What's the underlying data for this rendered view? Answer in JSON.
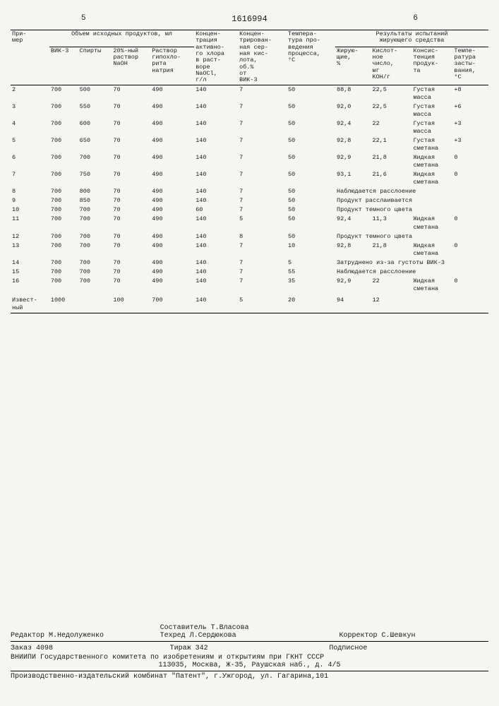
{
  "page_left": "5",
  "page_right": "6",
  "doc_number": "1616994",
  "headers": {
    "col1": "При-\nмер",
    "group1": "Объем исходных продуктов, мл",
    "g1c1": "ВИК-3",
    "g1c2": "Спирты",
    "g1c3": "20%-ный\nраствор\nNaOH",
    "g1c4": "Раствор\nгипохло-\nрита\nнатрия",
    "col2": "Концен-\nтрация\nактивно-\nго хлора\nв раст-\nворе\nNaOCl,\nг/л",
    "col3": "Концен-\nтрирован-\nная сер-\nная кис-\nлота,\nоб.%\nот\nВИК-3",
    "col4": "Темпера-\nтура про-\nведения\nпроцесса,\n°С",
    "group2": "Результаты испытаний\nжирующего средства",
    "g2c1": "Жирую-\nщие,\n%",
    "g2c2": "Кислот-\nное\nчисло,\nмг\nKOH/г",
    "g2c3": "Консис-\nтенция\nпродук-\nта",
    "g2c4": "Темпе-\nратура\nзасты-\nвания,\n°С"
  },
  "rows": [
    {
      "n": "2",
      "vik": "700",
      "sp": "500",
      "naoh": "70",
      "hyp": "490",
      "cl": "140",
      "ac": "7",
      "temp": "50",
      "zh": "88,8",
      "kn": "22,5",
      "kon": "Густая\nмасса",
      "tz": "+8"
    },
    {
      "n": "3",
      "vik": "700",
      "sp": "550",
      "naoh": "70",
      "hyp": "490",
      "cl": "140",
      "ac": "7",
      "temp": "50",
      "zh": "92,0",
      "kn": "22,5",
      "kon": "Густая\nмасса",
      "tz": "+6"
    },
    {
      "n": "4",
      "vik": "700",
      "sp": "600",
      "naoh": "70",
      "hyp": "490",
      "cl": "140",
      "ac": "7",
      "temp": "50",
      "zh": "92,4",
      "kn": "22",
      "kon": "Густая\nмасса",
      "tz": "+3"
    },
    {
      "n": "5",
      "vik": "700",
      "sp": "650",
      "naoh": "70",
      "hyp": "490",
      "cl": "140",
      "ac": "7",
      "temp": "50",
      "zh": "92,8",
      "kn": "22,1",
      "kon": "Густая\nсметана",
      "tz": "+3"
    },
    {
      "n": "6",
      "vik": "700",
      "sp": "700",
      "naoh": "70",
      "hyp": "490",
      "cl": "140",
      "ac": "7",
      "temp": "50",
      "zh": "92,9",
      "kn": "21,8",
      "kon": "Жидкая\nсметана",
      "tz": "0"
    },
    {
      "n": "7",
      "vik": "700",
      "sp": "750",
      "naoh": "70",
      "hyp": "490",
      "cl": "140",
      "ac": "7",
      "temp": "50",
      "zh": "93,1",
      "kn": "21,6",
      "kon": "Жидкая\nсметана",
      "tz": "0"
    },
    {
      "n": "8",
      "vik": "700",
      "sp": "800",
      "naoh": "70",
      "hyp": "490",
      "cl": "140",
      "ac": "7",
      "temp": "50",
      "note": "Наблюдается расслоение"
    },
    {
      "n": "9",
      "vik": "700",
      "sp": "850",
      "naoh": "70",
      "hyp": "490",
      "cl": "140",
      "ac": "7",
      "temp": "50",
      "note": "Продукт расслаивается"
    },
    {
      "n": "10",
      "vik": "700",
      "sp": "700",
      "naoh": "70",
      "hyp": "490",
      "cl": "60",
      "ac": "7",
      "temp": "50",
      "note": "Продукт темного цвета"
    },
    {
      "n": "11",
      "vik": "700",
      "sp": "700",
      "naoh": "70",
      "hyp": "490",
      "cl": "140",
      "ac": "5",
      "temp": "50",
      "zh": "92,4",
      "kn": "11,3",
      "kon": "Жидкая\nсметана",
      "tz": "0"
    },
    {
      "n": "12",
      "vik": "700",
      "sp": "700",
      "naoh": "70",
      "hyp": "490",
      "cl": "140",
      "ac": "8",
      "temp": "50",
      "note": "Продукт темного цвета"
    },
    {
      "n": "13",
      "vik": "700",
      "sp": "700",
      "naoh": "70",
      "hyp": "490",
      "cl": "140",
      "ac": "7",
      "temp": "10",
      "zh": "92,8",
      "kn": "21,8",
      "kon": "Жидкая\nсметана",
      "tz": "0"
    },
    {
      "n": "14",
      "vik": "700",
      "sp": "700",
      "naoh": "70",
      "hyp": "490",
      "cl": "140",
      "ac": "7",
      "temp": "5",
      "note": "Затруднено из-за густоты ВИК-3"
    },
    {
      "n": "15",
      "vik": "700",
      "sp": "700",
      "naoh": "70",
      "hyp": "490",
      "cl": "140",
      "ac": "7",
      "temp": "55",
      "note": "Наблюдается расслоение"
    },
    {
      "n": "16",
      "vik": "700",
      "sp": "700",
      "naoh": "70",
      "hyp": "490",
      "cl": "140",
      "ac": "7",
      "temp": "35",
      "zh": "92,9",
      "kn": "22",
      "kon": "Жидкая\nсметана",
      "tz": "0"
    }
  ],
  "known_label": "Извест-\nный",
  "known": {
    "vik": "1000",
    "sp": "",
    "naoh": "100",
    "hyp": "700",
    "cl": "140",
    "ac": "5",
    "temp": "20",
    "zh": "94",
    "kn": "12",
    "kon": "",
    "tz": ""
  },
  "footer": {
    "compose_label": "Составитель Т.Власова",
    "editor": "Редактор М.Недолуженко",
    "techred": "Техред Л.Сердюкова",
    "corrector": "Корректор С.Шевкун",
    "order": "Заказ 4098",
    "tirazh": "Тираж 342",
    "podpis": "Подписное",
    "vniipi": "ВНИИПИ Государственного комитета по изобретениям и открытиям при ГКНТ СССР",
    "addr": "113035, Москва, Ж-35, Раушская наб., д. 4/5",
    "prod": "Производственно-издательский комбинат \"Патент\", г.Ужгород, ул. Гагарина,101"
  }
}
